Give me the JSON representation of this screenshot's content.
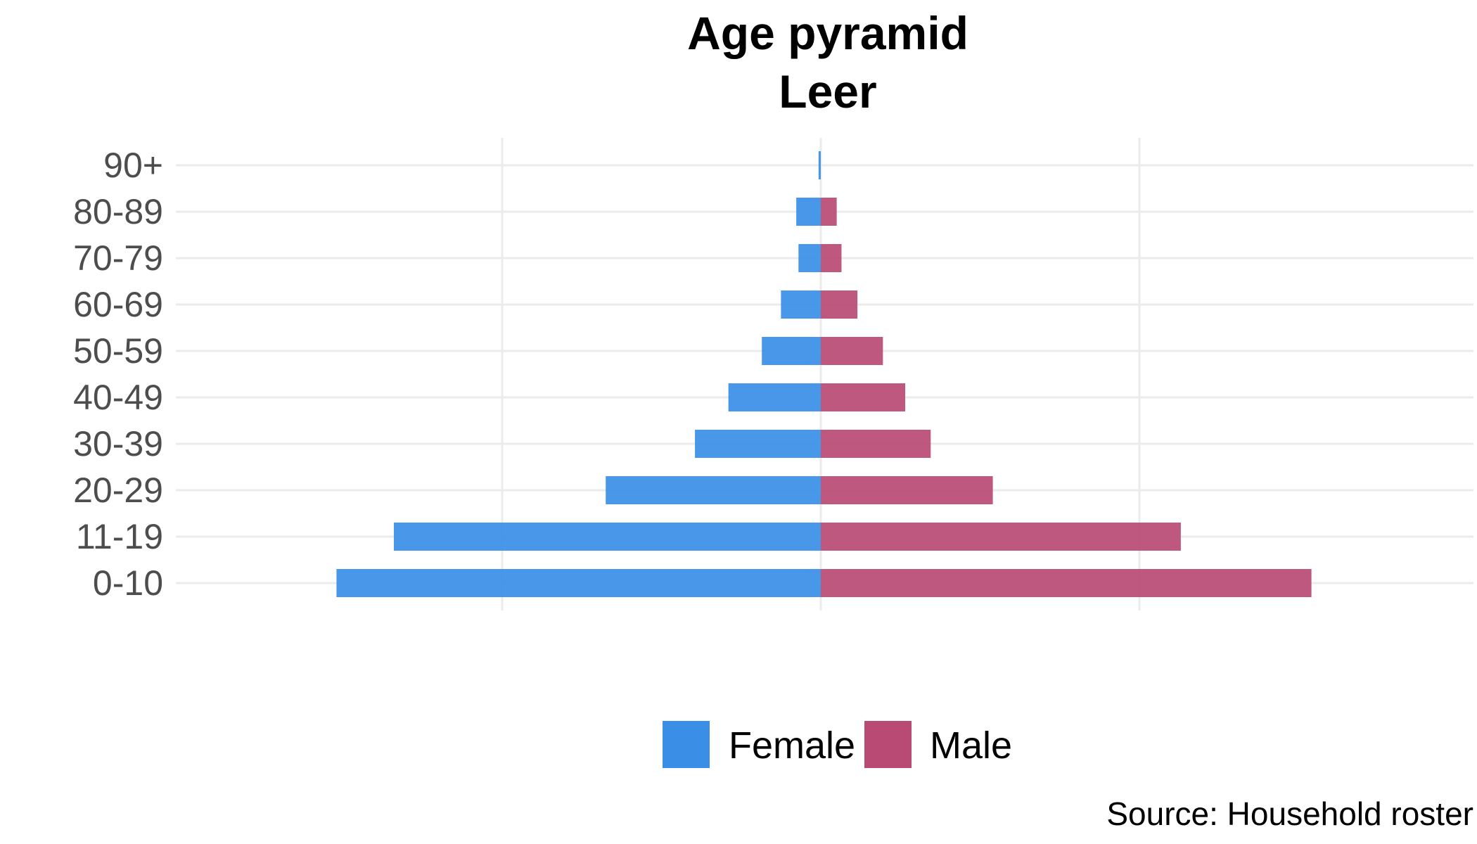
{
  "chart_data": {
    "type": "bar",
    "orientation": "horizontal",
    "layout": "population-pyramid",
    "title": "Age pyramid",
    "subtitle": "Leer",
    "categories": [
      "0-10",
      "11-19",
      "20-29",
      "30-39",
      "40-49",
      "50-59",
      "60-69",
      "70-79",
      "80-89",
      "90+"
    ],
    "series": [
      {
        "name": "Female",
        "color": "#3a8ee6",
        "side": "left",
        "values": [
          152,
          134,
          67.5,
          39.5,
          29,
          18.5,
          12.5,
          7,
          7.7,
          0.7
        ]
      },
      {
        "name": "Male",
        "color": "#b84a74",
        "side": "right",
        "values": [
          154,
          113,
          54,
          34.5,
          26.5,
          19.5,
          11.5,
          6.5,
          5,
          0
        ]
      }
    ],
    "xlim": [
      -203,
      170
    ],
    "x_axis_labels_shown": false,
    "grid": true,
    "legend_position": "bottom",
    "caption": "Source: Household roster"
  }
}
